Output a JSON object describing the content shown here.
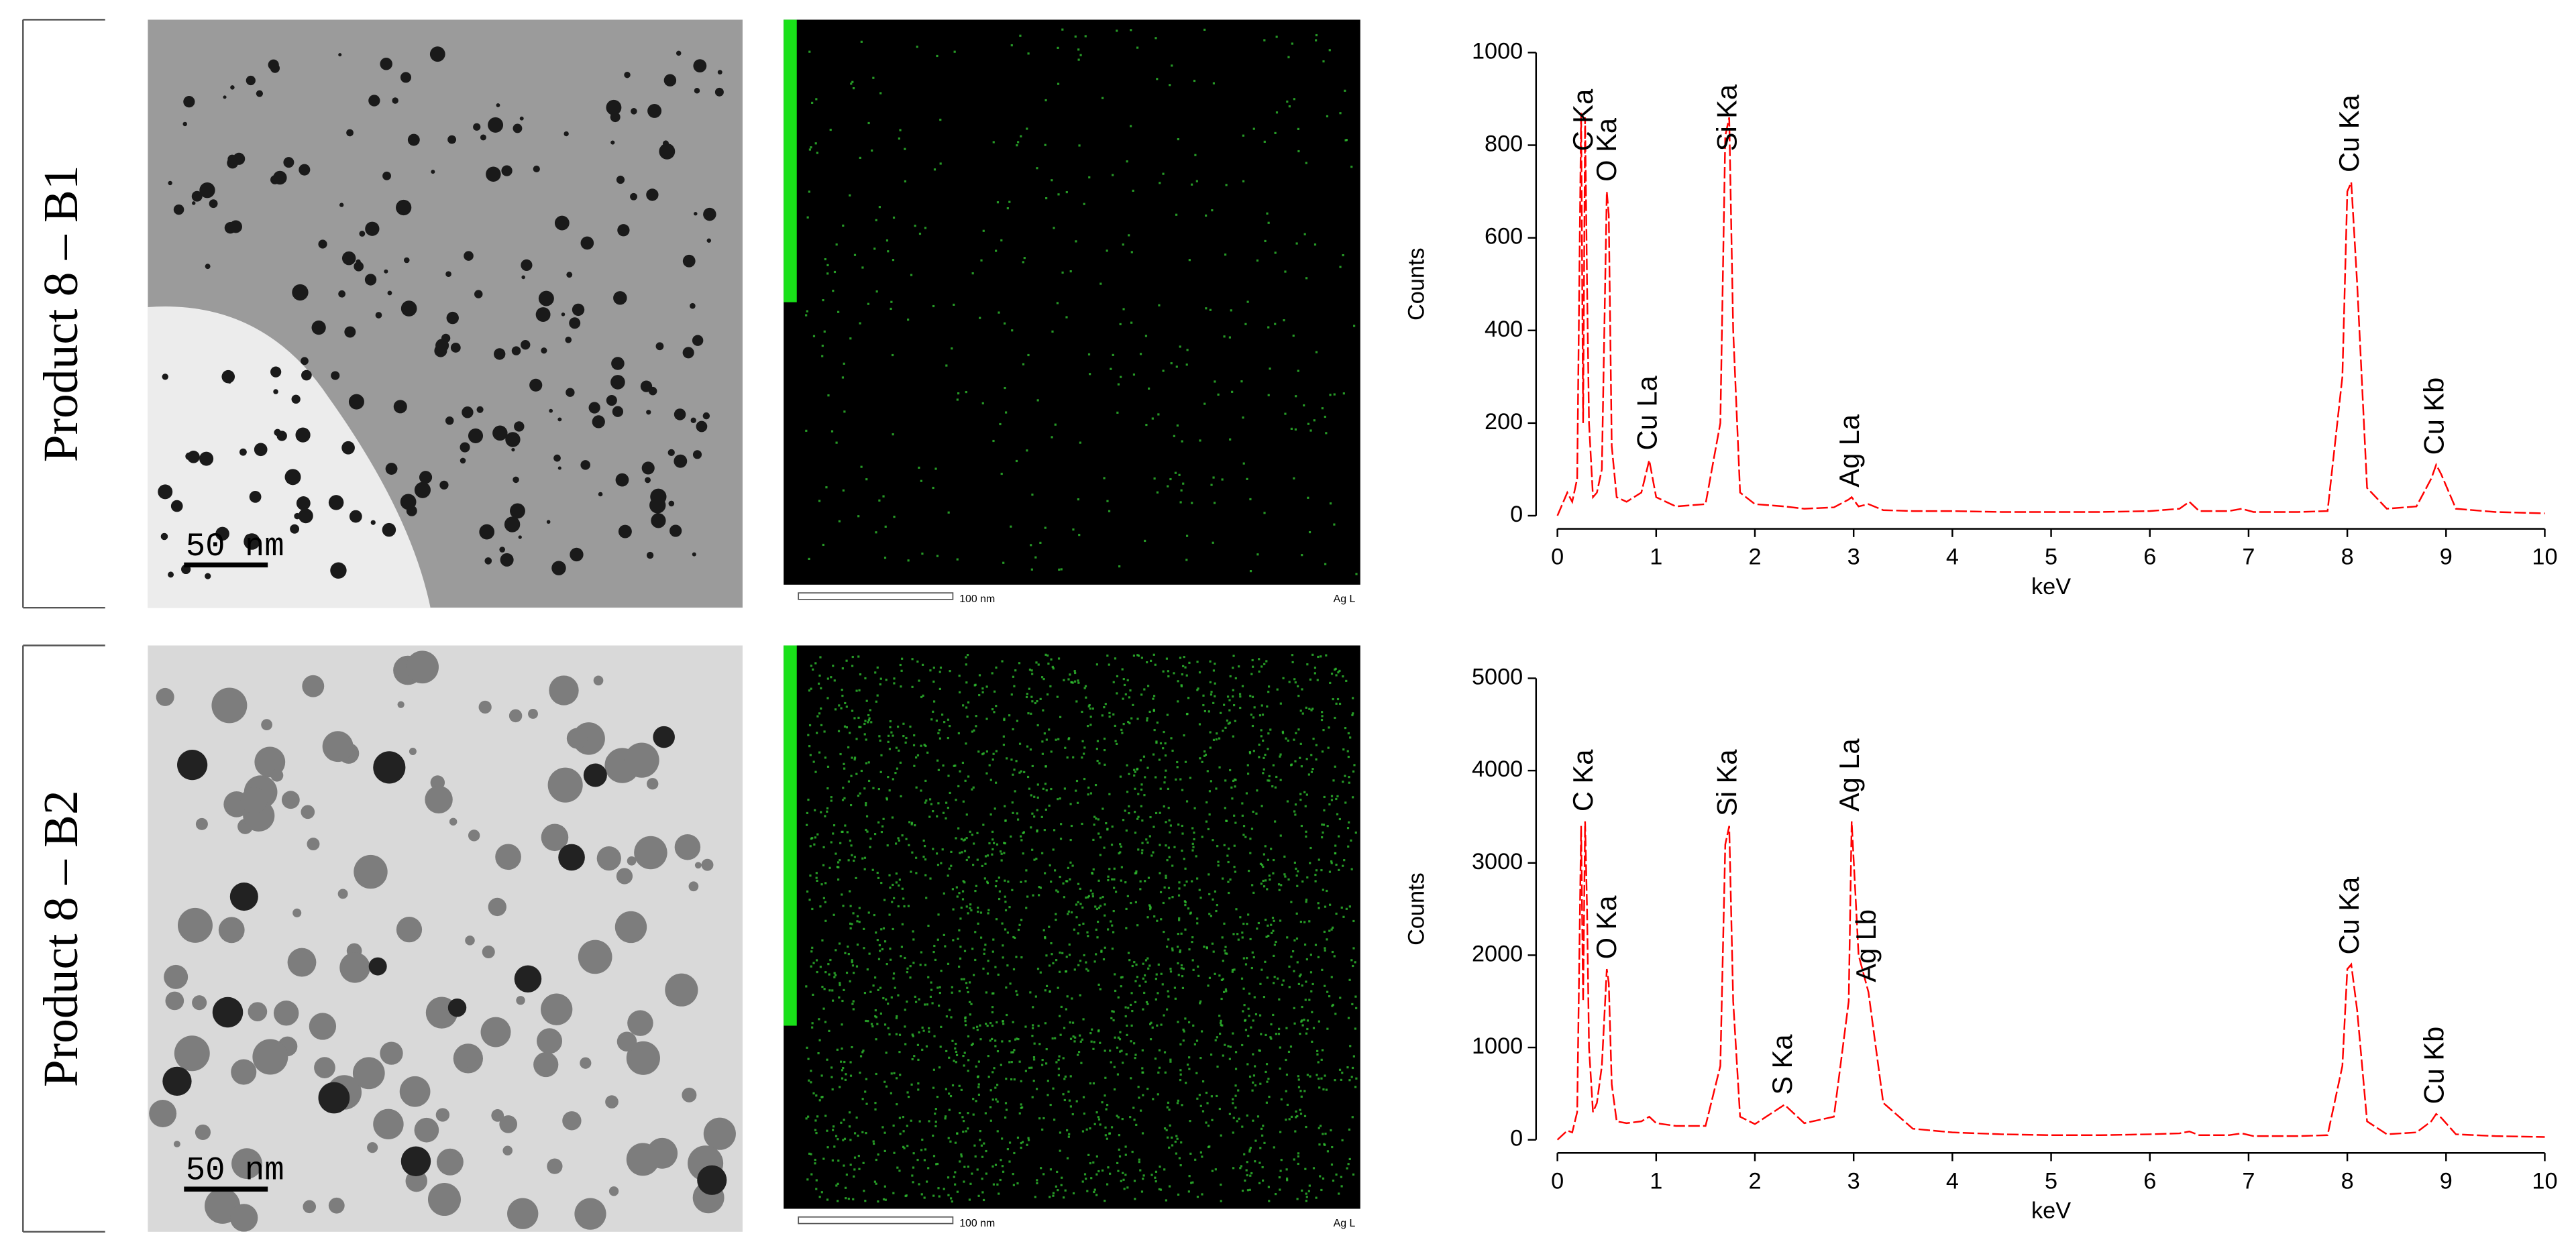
{
  "rows": [
    {
      "label": "Product 8 – B1",
      "tem_scale": "50 nm",
      "map_scale": "100 nm",
      "map_element": "Ag L"
    },
    {
      "label": "Product 8 – B2",
      "tem_scale": "50 nm",
      "map_scale": "100 nm",
      "map_element": "Ag L"
    }
  ],
  "chart_data": [
    {
      "type": "line",
      "xlabel": "keV",
      "ylabel": "Counts",
      "color": "#ff0000",
      "xlim": [
        0,
        10
      ],
      "ylim": [
        0,
        1000
      ],
      "xticks": [
        0,
        1,
        2,
        3,
        4,
        5,
        6,
        7,
        8,
        9,
        10
      ],
      "yticks": [
        0,
        200,
        400,
        600,
        800,
        1000
      ],
      "x": [
        0,
        0.1,
        0.15,
        0.2,
        0.24,
        0.26,
        0.28,
        0.3,
        0.32,
        0.36,
        0.4,
        0.45,
        0.5,
        0.52,
        0.55,
        0.6,
        0.7,
        0.85,
        0.93,
        1.0,
        1.2,
        1.5,
        1.65,
        1.7,
        1.74,
        1.78,
        1.85,
        2.0,
        2.3,
        2.5,
        2.8,
        2.95,
        2.98,
        3.05,
        3.15,
        3.3,
        3.6,
        4,
        4.5,
        5,
        5.5,
        6,
        6.3,
        6.4,
        6.5,
        6.8,
        6.93,
        7.05,
        7.5,
        7.8,
        7.95,
        8.0,
        8.04,
        8.1,
        8.2,
        8.4,
        8.7,
        8.85,
        8.9,
        8.95,
        9.1,
        9.5,
        10
      ],
      "values": [
        0,
        50,
        30,
        80,
        870,
        200,
        860,
        500,
        200,
        40,
        50,
        100,
        700,
        650,
        150,
        40,
        30,
        50,
        120,
        40,
        20,
        25,
        200,
        820,
        860,
        400,
        50,
        25,
        20,
        15,
        18,
        35,
        40,
        20,
        25,
        12,
        10,
        10,
        8,
        8,
        8,
        10,
        15,
        30,
        10,
        10,
        15,
        8,
        8,
        10,
        300,
        700,
        720,
        500,
        60,
        15,
        20,
        80,
        110,
        90,
        15,
        8,
        5
      ],
      "annotations": [
        {
          "text": "C Ka",
          "x": 0.28
        },
        {
          "text": "O Ka",
          "x": 0.52
        },
        {
          "text": "Cu La",
          "x": 0.93
        },
        {
          "text": "Si Ka",
          "x": 1.74
        },
        {
          "text": "Ag La",
          "x": 2.98
        },
        {
          "text": "Cu Ka",
          "x": 8.04
        },
        {
          "text": "Cu Kb",
          "x": 8.9
        }
      ]
    },
    {
      "type": "line",
      "xlabel": "keV",
      "ylabel": "Counts",
      "color": "#ff0000",
      "xlim": [
        0,
        10
      ],
      "ylim": [
        0,
        5000
      ],
      "xticks": [
        0,
        1,
        2,
        3,
        4,
        5,
        6,
        7,
        8,
        9,
        10
      ],
      "yticks": [
        0,
        1000,
        2000,
        3000,
        4000,
        5000
      ],
      "x": [
        0,
        0.1,
        0.15,
        0.2,
        0.24,
        0.26,
        0.28,
        0.3,
        0.32,
        0.36,
        0.4,
        0.45,
        0.5,
        0.52,
        0.55,
        0.6,
        0.7,
        0.85,
        0.93,
        1.0,
        1.2,
        1.5,
        1.65,
        1.7,
        1.74,
        1.78,
        1.85,
        2.0,
        2.3,
        2.5,
        2.8,
        2.95,
        2.98,
        3.05,
        3.15,
        3.3,
        3.6,
        4,
        4.5,
        5,
        5.5,
        6,
        6.3,
        6.4,
        6.5,
        6.8,
        6.93,
        7.05,
        7.5,
        7.8,
        7.95,
        8.0,
        8.04,
        8.1,
        8.2,
        8.4,
        8.7,
        8.85,
        8.9,
        8.95,
        9.1,
        9.5,
        10
      ],
      "values": [
        0,
        100,
        80,
        300,
        3400,
        1500,
        3450,
        2500,
        1000,
        300,
        400,
        800,
        1850,
        1700,
        600,
        200,
        180,
        200,
        250,
        180,
        150,
        150,
        800,
        3200,
        3400,
        1500,
        250,
        170,
        380,
        180,
        250,
        1500,
        3450,
        2000,
        1600,
        400,
        120,
        80,
        60,
        50,
        50,
        60,
        70,
        90,
        50,
        50,
        70,
        40,
        40,
        50,
        800,
        1850,
        1900,
        1400,
        200,
        60,
        80,
        200,
        280,
        240,
        60,
        40,
        30
      ],
      "annotations": [
        {
          "text": "C Ka",
          "x": 0.28
        },
        {
          "text": "O Ka",
          "x": 0.52
        },
        {
          "text": "Si Ka",
          "x": 1.74
        },
        {
          "text": "S Ka",
          "x": 2.3
        },
        {
          "text": "Ag La",
          "x": 2.98
        },
        {
          "text": "Ag Lb",
          "x": 3.15
        },
        {
          "text": "Cu Ka",
          "x": 8.04
        },
        {
          "text": "Cu Kb",
          "x": 8.9
        }
      ]
    }
  ]
}
